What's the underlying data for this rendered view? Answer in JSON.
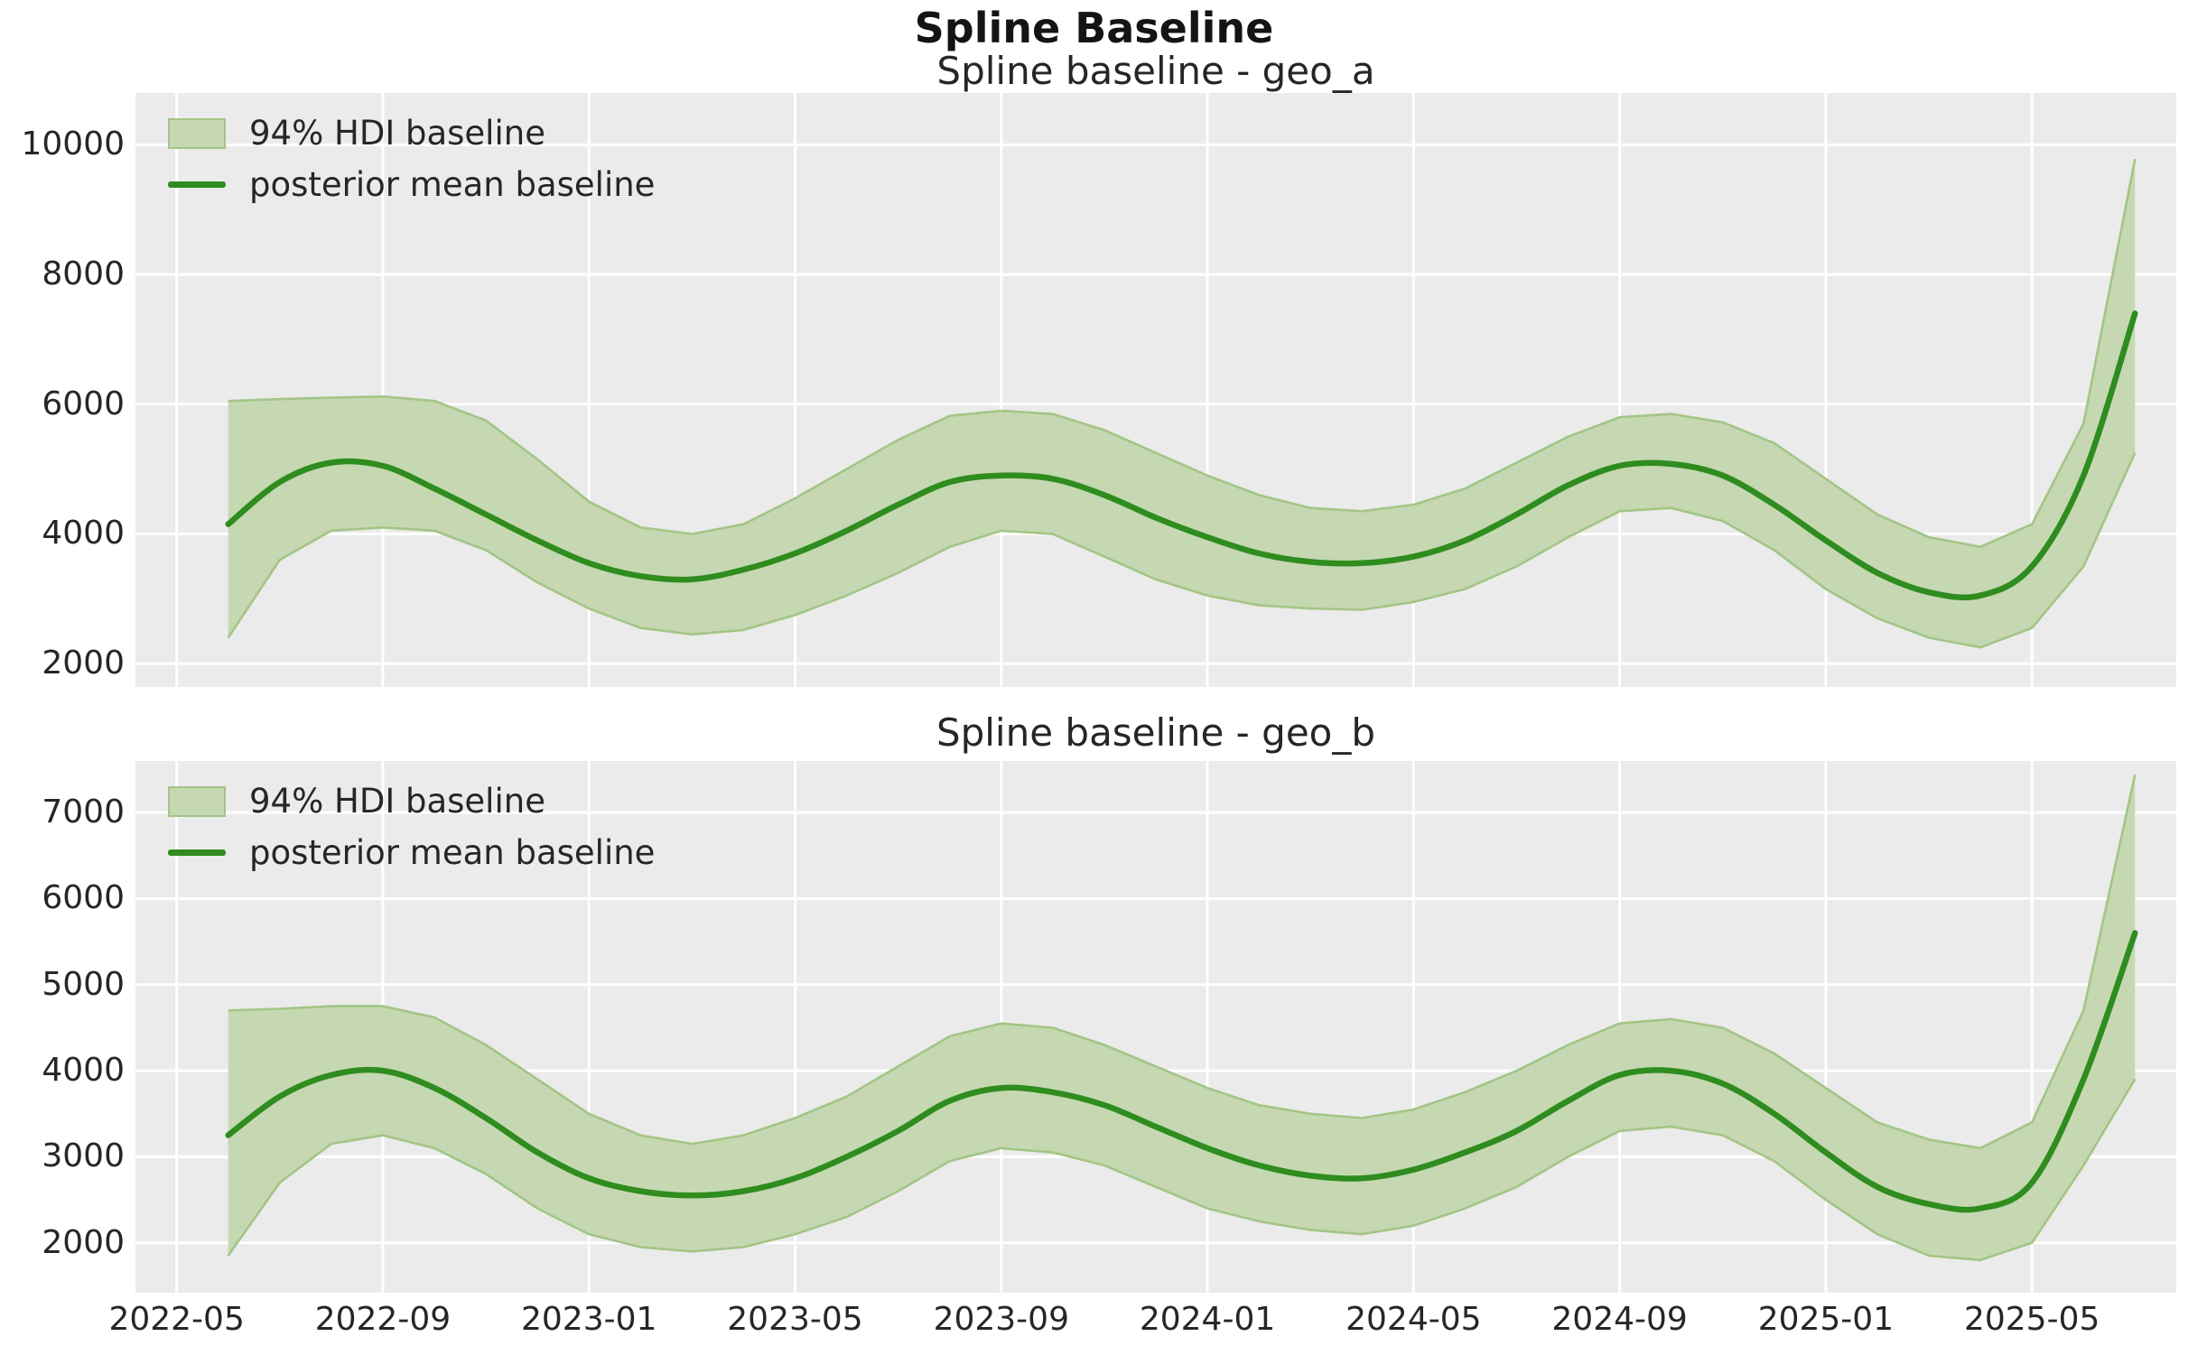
{
  "figure_title": "Spline Baseline",
  "colors": {
    "fig_bg": "#ffffff",
    "axes_bg": "#ebebeb",
    "grid": "#ffffff",
    "mean_line": "#2f8c1e",
    "band_fill": "#c5d8b2",
    "band_edge": "#a3c585",
    "text": "#262626",
    "suptitle_text": "#141414"
  },
  "chart_data": [
    {
      "type": "area",
      "title": "Spline baseline - geo_a",
      "legend_position": "upper-left",
      "grid": true,
      "x": [
        "2022-06",
        "2022-07",
        "2022-08",
        "2022-09",
        "2022-10",
        "2022-11",
        "2022-12",
        "2023-01",
        "2023-02",
        "2023-03",
        "2023-04",
        "2023-05",
        "2023-06",
        "2023-07",
        "2023-08",
        "2023-09",
        "2023-10",
        "2023-11",
        "2023-12",
        "2024-01",
        "2024-02",
        "2024-03",
        "2024-04",
        "2024-05",
        "2024-06",
        "2024-07",
        "2024-08",
        "2024-09",
        "2024-10",
        "2024-11",
        "2024-12",
        "2025-01",
        "2025-02",
        "2025-03",
        "2025-04",
        "2025-05",
        "2025-06",
        "2025-07"
      ],
      "x_tick_labels": [
        "2022-05",
        "2022-09",
        "2023-01",
        "2023-05",
        "2023-09",
        "2024-01",
        "2024-05",
        "2024-09",
        "2025-01",
        "2025-05"
      ],
      "xlim_months": [
        -0.8,
        38.8
      ],
      "y_ticks": [
        2000,
        4000,
        6000,
        8000,
        10000
      ],
      "ylim": [
        1640,
        10800
      ],
      "series": [
        {
          "name": "94% HDI baseline",
          "kind": "band",
          "lower": [
            2400,
            3600,
            4050,
            4100,
            4050,
            3750,
            3250,
            2850,
            2550,
            2450,
            2520,
            2750,
            3050,
            3400,
            3800,
            4050,
            4000,
            3650,
            3300,
            3050,
            2900,
            2850,
            2830,
            2950,
            3150,
            3500,
            3950,
            4350,
            4400,
            4200,
            3750,
            3150,
            2700,
            2400,
            2250,
            2550,
            3500,
            5250
          ],
          "upper": [
            6050,
            6080,
            6100,
            6120,
            6050,
            5750,
            5150,
            4500,
            4100,
            4000,
            4150,
            4550,
            5000,
            5450,
            5820,
            5900,
            5850,
            5600,
            5250,
            4900,
            4600,
            4400,
            4350,
            4450,
            4700,
            5100,
            5500,
            5800,
            5850,
            5720,
            5400,
            4850,
            4300,
            3950,
            3800,
            4150,
            5700,
            9780
          ]
        },
        {
          "name": "posterior mean baseline",
          "kind": "line",
          "values": [
            4150,
            4800,
            5100,
            5050,
            4700,
            4300,
            3900,
            3550,
            3350,
            3300,
            3450,
            3700,
            4050,
            4450,
            4800,
            4900,
            4850,
            4600,
            4250,
            3950,
            3700,
            3570,
            3550,
            3650,
            3900,
            4300,
            4750,
            5050,
            5080,
            4900,
            4450,
            3900,
            3400,
            3100,
            3050,
            3500,
            4900,
            7400
          ]
        }
      ]
    },
    {
      "type": "area",
      "title": "Spline baseline - geo_b",
      "legend_position": "upper-left",
      "grid": true,
      "x": [
        "2022-06",
        "2022-07",
        "2022-08",
        "2022-09",
        "2022-10",
        "2022-11",
        "2022-12",
        "2023-01",
        "2023-02",
        "2023-03",
        "2023-04",
        "2023-05",
        "2023-06",
        "2023-07",
        "2023-08",
        "2023-09",
        "2023-10",
        "2023-11",
        "2023-12",
        "2024-01",
        "2024-02",
        "2024-03",
        "2024-04",
        "2024-05",
        "2024-06",
        "2024-07",
        "2024-08",
        "2024-09",
        "2024-10",
        "2024-11",
        "2024-12",
        "2025-01",
        "2025-02",
        "2025-03",
        "2025-04",
        "2025-05",
        "2025-06",
        "2025-07"
      ],
      "x_tick_labels": [
        "2022-05",
        "2022-09",
        "2023-01",
        "2023-05",
        "2023-09",
        "2024-01",
        "2024-05",
        "2024-09",
        "2025-01",
        "2025-05"
      ],
      "xlim_months": [
        -0.8,
        38.8
      ],
      "y_ticks": [
        2000,
        3000,
        4000,
        5000,
        6000,
        7000
      ],
      "ylim": [
        1420,
        7600
      ],
      "series": [
        {
          "name": "94% HDI baseline",
          "kind": "band",
          "lower": [
            1850,
            2700,
            3150,
            3250,
            3100,
            2800,
            2400,
            2100,
            1950,
            1900,
            1950,
            2100,
            2300,
            2600,
            2950,
            3100,
            3050,
            2900,
            2650,
            2400,
            2250,
            2150,
            2100,
            2200,
            2400,
            2650,
            3000,
            3300,
            3350,
            3250,
            2950,
            2500,
            2100,
            1850,
            1800,
            2000,
            2900,
            3900
          ],
          "upper": [
            4700,
            4720,
            4750,
            4750,
            4620,
            4300,
            3900,
            3500,
            3250,
            3150,
            3250,
            3450,
            3700,
            4050,
            4400,
            4550,
            4500,
            4300,
            4050,
            3800,
            3600,
            3500,
            3450,
            3550,
            3750,
            4000,
            4300,
            4550,
            4600,
            4500,
            4200,
            3800,
            3400,
            3200,
            3100,
            3400,
            4700,
            7440
          ]
        },
        {
          "name": "posterior mean baseline",
          "kind": "line",
          "values": [
            3250,
            3700,
            3950,
            4000,
            3800,
            3450,
            3050,
            2750,
            2600,
            2550,
            2600,
            2750,
            3000,
            3300,
            3650,
            3800,
            3750,
            3600,
            3350,
            3100,
            2900,
            2780,
            2750,
            2850,
            3050,
            3300,
            3650,
            3950,
            4000,
            3850,
            3500,
            3050,
            2650,
            2450,
            2400,
            2700,
            3900,
            5600
          ]
        }
      ]
    }
  ]
}
